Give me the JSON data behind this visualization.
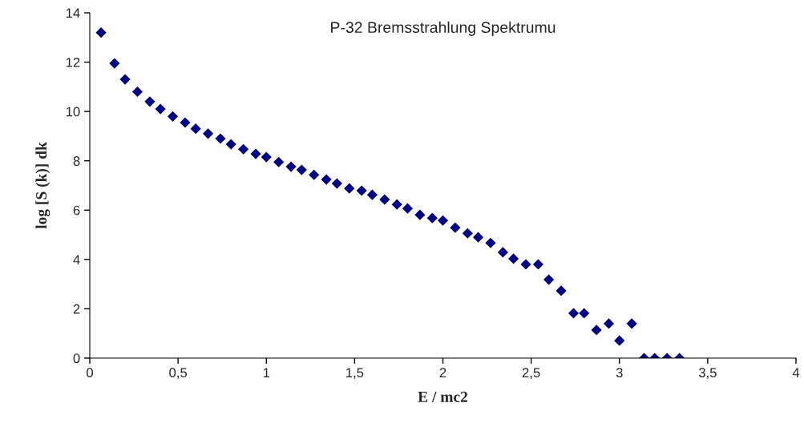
{
  "chart_data": {
    "type": "scatter",
    "title": "P-32 Bremsstrahlung Spektrumu",
    "xlabel": "E / mc2",
    "ylabel": "log [S (k)] dk",
    "x": [
      0.064,
      0.14,
      0.2,
      0.27,
      0.34,
      0.4,
      0.47,
      0.54,
      0.6,
      0.67,
      0.74,
      0.8,
      0.87,
      0.94,
      1.0,
      1.07,
      1.14,
      1.2,
      1.27,
      1.34,
      1.4,
      1.47,
      1.54,
      1.6,
      1.67,
      1.74,
      1.8,
      1.87,
      1.94,
      2.0,
      2.07,
      2.14,
      2.2,
      2.27,
      2.34,
      2.4,
      2.47,
      2.54,
      2.6,
      2.67,
      2.74,
      2.8,
      2.87,
      2.94,
      3.0,
      3.07,
      3.14,
      3.2,
      3.27,
      3.34
    ],
    "series": [
      {
        "color": "#000080",
        "values": [
          13.2,
          11.95,
          11.3,
          10.8,
          10.4,
          10.1,
          9.8,
          9.55,
          9.3,
          9.1,
          8.9,
          8.67,
          8.47,
          8.28,
          8.15,
          7.95,
          7.76,
          7.63,
          7.43,
          7.24,
          7.08,
          6.88,
          6.79,
          6.62,
          6.43,
          6.23,
          6.07,
          5.81,
          5.68,
          5.58,
          5.29,
          5.06,
          4.9,
          4.67,
          4.29,
          4.03,
          3.8,
          3.8,
          3.18,
          2.73,
          1.82,
          1.82,
          1.14,
          1.4,
          0.71,
          1.4,
          0,
          0,
          0,
          0
        ]
      }
    ],
    "xlim": [
      0,
      4
    ],
    "xticks": [
      0,
      {
        "value": 0.5,
        "label": "0,5"
      },
      1,
      {
        "value": 1.5,
        "label": "1,5"
      },
      2,
      {
        "value": 2.5,
        "label": "2,5"
      },
      3,
      {
        "value": 3.5,
        "label": "3,5"
      },
      4
    ],
    "ylim": [
      0,
      14
    ],
    "yticks": [
      0,
      2,
      4,
      6,
      8,
      10,
      12,
      14
    ],
    "marker": "diamond",
    "grid": false,
    "legend": false
  }
}
